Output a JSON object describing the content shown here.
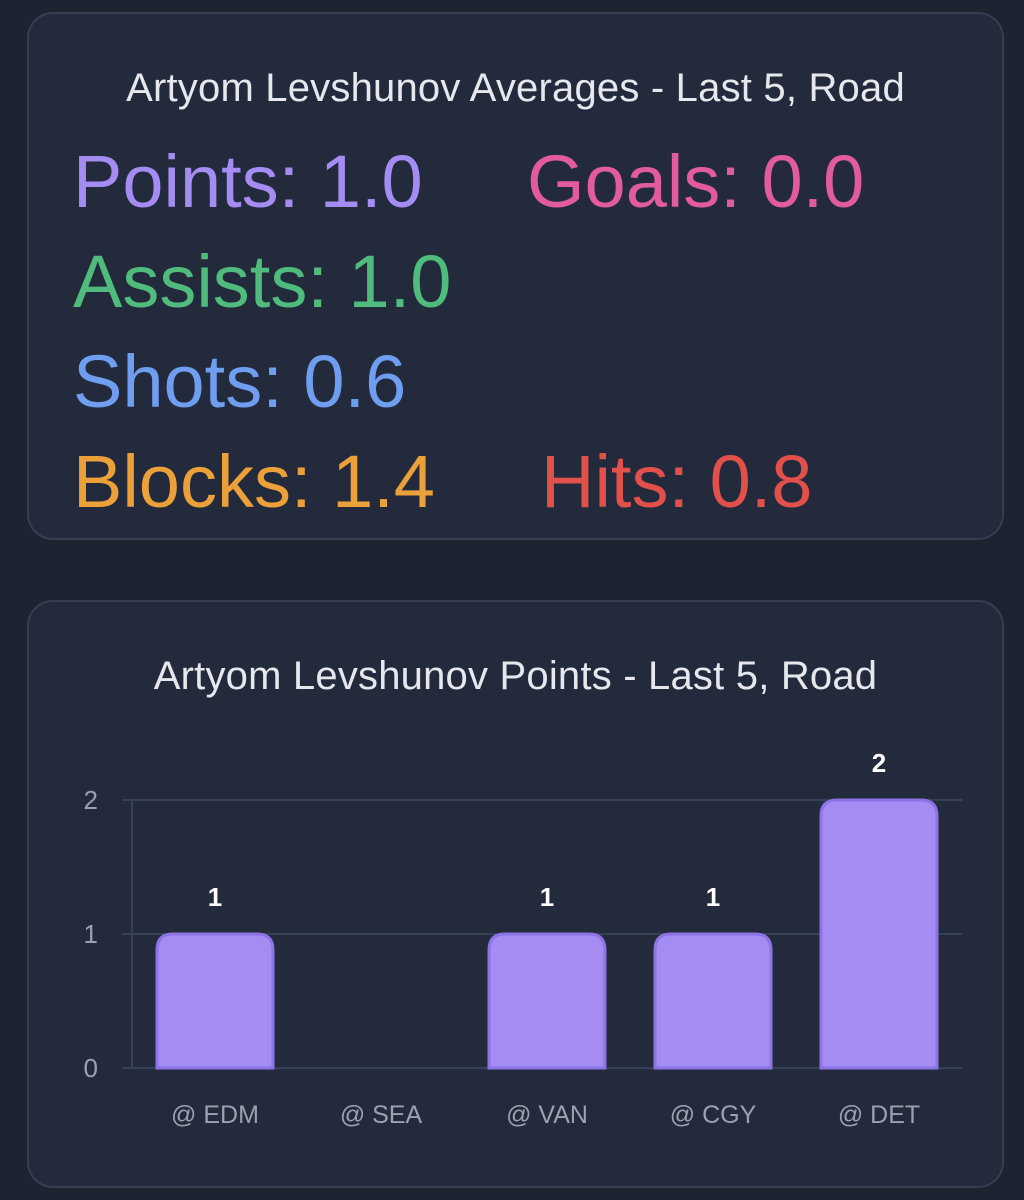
{
  "averages": {
    "title": "Artyom Levshunov Averages - Last 5, Road",
    "stats": {
      "points": {
        "label": "Points:",
        "value": "1.0",
        "color": "#a48cf2"
      },
      "goals": {
        "label": "Goals:",
        "value": "0.0",
        "color": "#e25c9d"
      },
      "assists": {
        "label": "Assists:",
        "value": "1.0",
        "color": "#4fbb7c"
      },
      "shots": {
        "label": "Shots:",
        "value": "0.6",
        "color": "#6f9df0"
      },
      "blocks": {
        "label": "Blocks:",
        "value": "1.4",
        "color": "#eba03a"
      },
      "hits": {
        "label": "Hits:",
        "value": "0.8",
        "color": "#e2504c"
      }
    }
  },
  "chart_data": {
    "type": "bar",
    "title": "Artyom Levshunov Points - Last 5, Road",
    "categories": [
      "@ EDM",
      "@ SEA",
      "@ VAN",
      "@ CGY",
      "@ DET"
    ],
    "values": [
      1,
      0,
      1,
      1,
      2
    ],
    "data_labels": [
      "1",
      "",
      "1",
      "1",
      "2"
    ],
    "yticks": [
      "0",
      "1",
      "2"
    ],
    "ylim": [
      0,
      2
    ],
    "grid": true,
    "bar_color": "#a48cf2",
    "bar_border_color": "#8d74e6",
    "grid_color": "#364056"
  }
}
